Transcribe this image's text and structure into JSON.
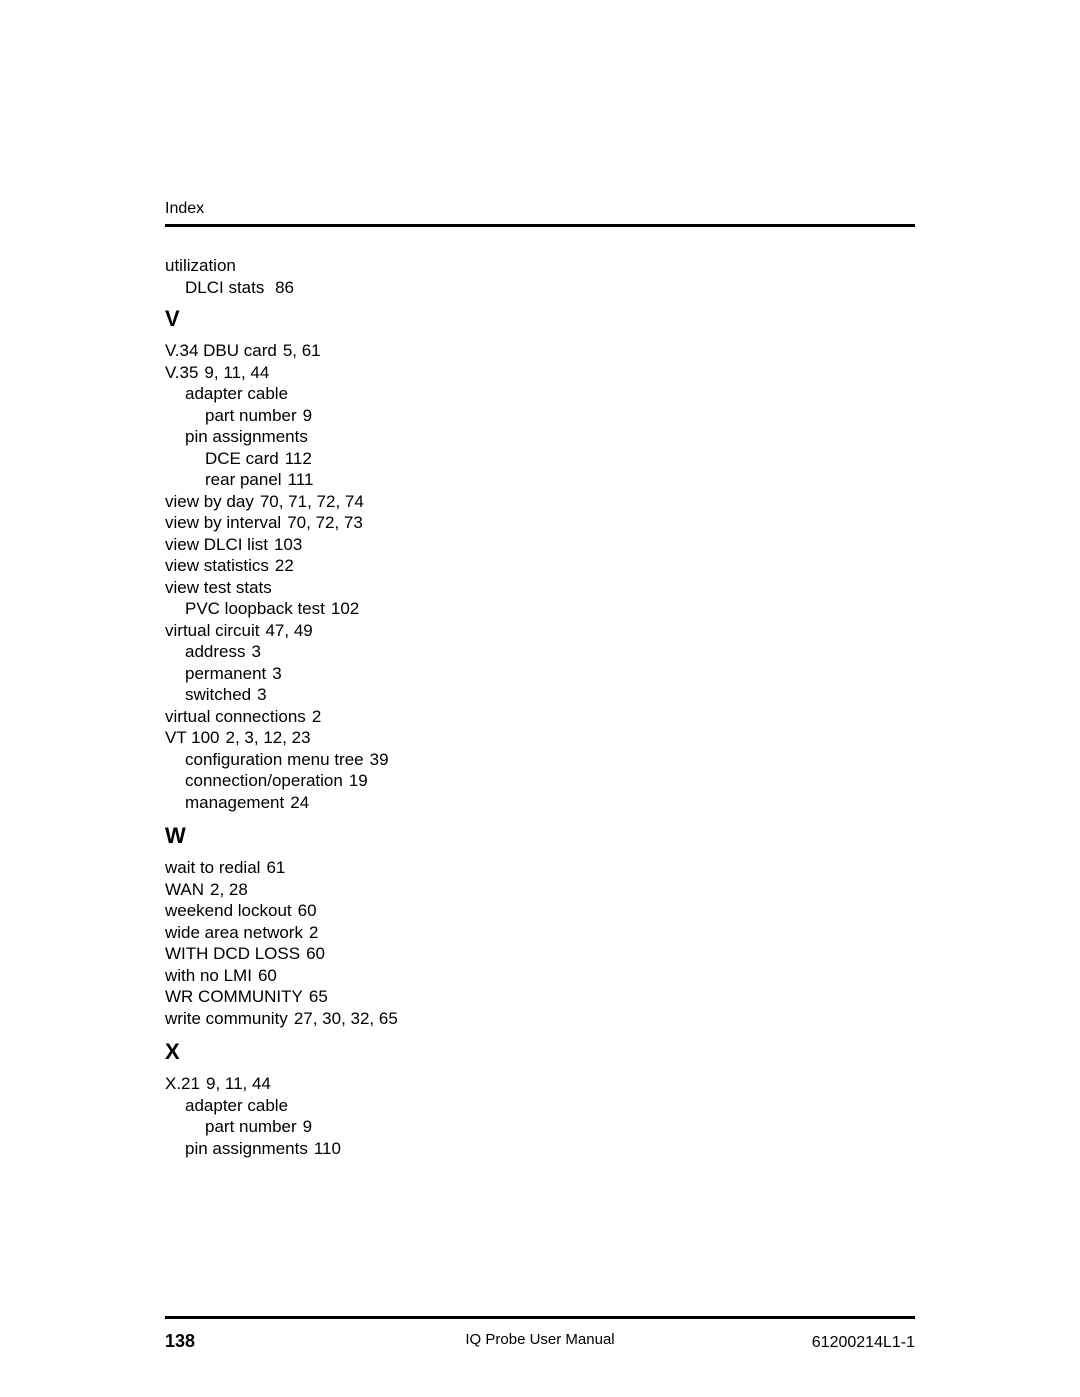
{
  "header": {
    "label": "Index"
  },
  "entries": [
    {
      "level": 0,
      "text": "utilization",
      "pages": ""
    },
    {
      "level": 1,
      "text": "DLCI stats",
      "pages": "86"
    }
  ],
  "sections": [
    {
      "letter": "V",
      "entries": [
        {
          "level": 0,
          "text": "V.34 DBU card",
          "pages": "5, 61"
        },
        {
          "level": 0,
          "text": "V.35",
          "pages": "9, 11, 44"
        },
        {
          "level": 1,
          "text": "adapter cable",
          "pages": ""
        },
        {
          "level": 2,
          "text": "part number",
          "pages": "9"
        },
        {
          "level": 1,
          "text": "pin assignments",
          "pages": ""
        },
        {
          "level": 2,
          "text": "DCE card",
          "pages": "112"
        },
        {
          "level": 2,
          "text": "rear panel",
          "pages": "111"
        },
        {
          "level": 0,
          "text": "view by day",
          "pages": "70, 71, 72, 74"
        },
        {
          "level": 0,
          "text": "view by interval",
          "pages": "70, 72, 73"
        },
        {
          "level": 0,
          "text": "view DLCI list",
          "pages": "103"
        },
        {
          "level": 0,
          "text": "view statistics",
          "pages": "22"
        },
        {
          "level": 0,
          "text": "view test stats",
          "pages": ""
        },
        {
          "level": 1,
          "text": "PVC loopback test",
          "pages": "102"
        },
        {
          "level": 0,
          "text": "virtual circuit",
          "pages": "47, 49"
        },
        {
          "level": 1,
          "text": "address",
          "pages": "3"
        },
        {
          "level": 1,
          "text": "permanent",
          "pages": "3"
        },
        {
          "level": 1,
          "text": "switched",
          "pages": "3"
        },
        {
          "level": 0,
          "text": "virtual connections",
          "pages": "2"
        },
        {
          "level": 0,
          "text": "VT 100",
          "pages": "2, 3, 12, 23"
        },
        {
          "level": 1,
          "text": "configuration menu tree",
          "pages": "39"
        },
        {
          "level": 1,
          "text": "connection/operation",
          "pages": "19"
        },
        {
          "level": 1,
          "text": "management",
          "pages": "24"
        }
      ]
    },
    {
      "letter": "W",
      "entries": [
        {
          "level": 0,
          "text": "wait to redial",
          "pages": "61"
        },
        {
          "level": 0,
          "text": "WAN",
          "pages": "2, 28"
        },
        {
          "level": 0,
          "text": "weekend lockout",
          "pages": "60"
        },
        {
          "level": 0,
          "text": "wide area network",
          "pages": "2"
        },
        {
          "level": 0,
          "text": "WITH DCD LOSS",
          "pages": "60"
        },
        {
          "level": 0,
          "text": "with no LMI",
          "pages": "60"
        },
        {
          "level": 0,
          "text": "WR COMMUNITY",
          "pages": "65"
        },
        {
          "level": 0,
          "text": "write community",
          "pages": "27, 30, 32, 65"
        }
      ]
    },
    {
      "letter": "X",
      "entries": [
        {
          "level": 0,
          "text": "X.21",
          "pages": "9, 11, 44"
        },
        {
          "level": 1,
          "text": "adapter cable",
          "pages": ""
        },
        {
          "level": 2,
          "text": "part number",
          "pages": "9"
        },
        {
          "level": 1,
          "text": "pin assignments",
          "pages": "110"
        }
      ]
    }
  ],
  "footer": {
    "page_number": "138",
    "manual_title": "IQ Probe User Manual",
    "doc_code": "61200214L1-1"
  }
}
